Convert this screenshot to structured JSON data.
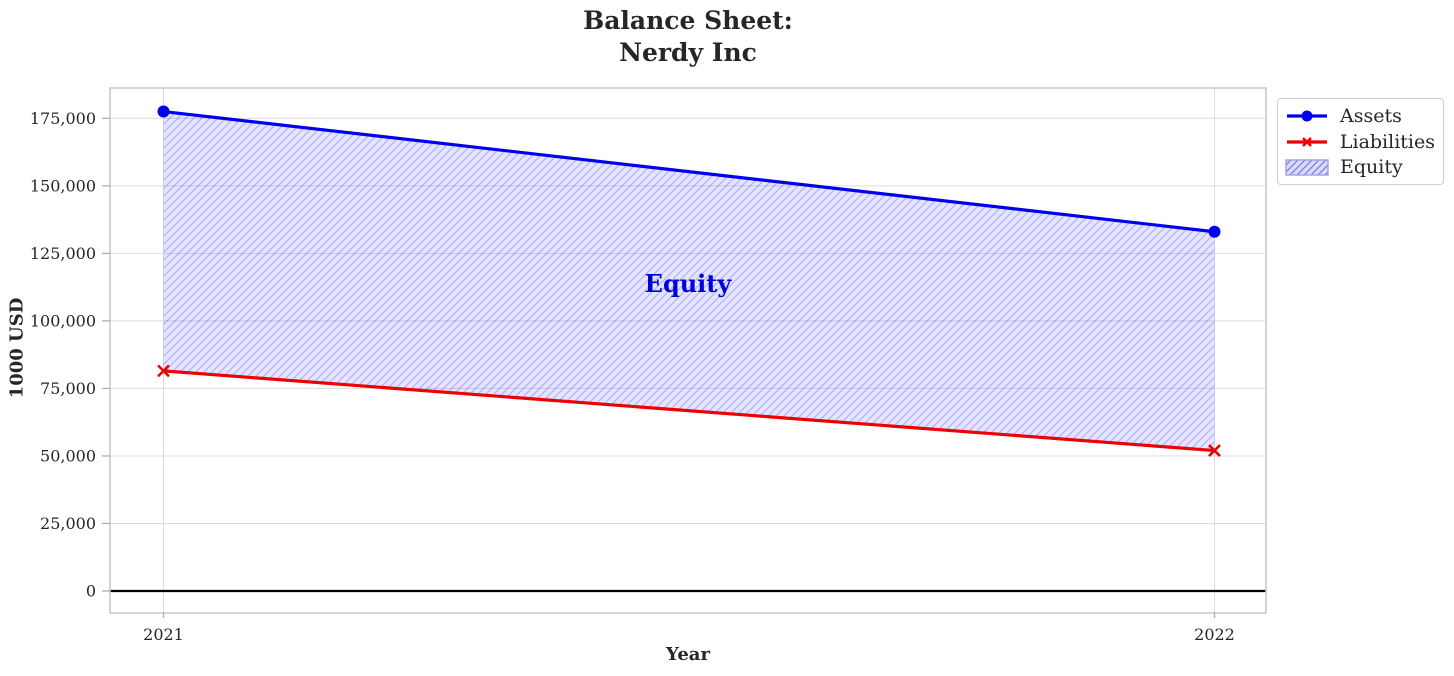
{
  "chart_data": {
    "type": "line",
    "title": "Balance Sheet:\nNerdy Inc",
    "title_lines": [
      "Balance Sheet:",
      "Nerdy Inc"
    ],
    "xlabel": "Year",
    "ylabel": "1000 USD",
    "x": [
      2021,
      2022
    ],
    "xtick_labels": [
      "2021",
      "2022"
    ],
    "series": [
      {
        "name": "Assets",
        "values": [
          177500,
          133000
        ],
        "color": "#0000ee",
        "marker": "circle"
      },
      {
        "name": "Liabilities",
        "values": [
          81500,
          52000
        ],
        "color": "#ee0000",
        "marker": "x"
      }
    ],
    "area": {
      "name": "Equity",
      "between": [
        "Assets",
        "Liabilities"
      ],
      "values": [
        96000,
        81000
      ],
      "fill_color": "#0000ff",
      "fill_opacity": 0.1,
      "hatch_opacity": 0.22,
      "hatch_style": "/"
    },
    "annotation": {
      "text": "Equity",
      "color": "#0000dd",
      "x": 2021.5,
      "y_value": 111000
    },
    "yticks": [
      0,
      25000,
      50000,
      75000,
      100000,
      125000,
      150000,
      175000
    ],
    "ytick_labels": [
      "0",
      "25,000",
      "50,000",
      "75,000",
      "100,000",
      "125,000",
      "150,000",
      "175,000"
    ],
    "ylim": [
      -8000,
      186000
    ],
    "grid": true,
    "grid_color": "#dcdcdc",
    "spine_color": "#c6c6c6",
    "tick_color": "#aaaaaa",
    "tick_label_color": "#262626",
    "zero_line": true,
    "zero_line_color": "#000000",
    "legend": {
      "position": "outside upper right",
      "entries": [
        "Assets",
        "Liabilities",
        "Equity"
      ]
    }
  }
}
